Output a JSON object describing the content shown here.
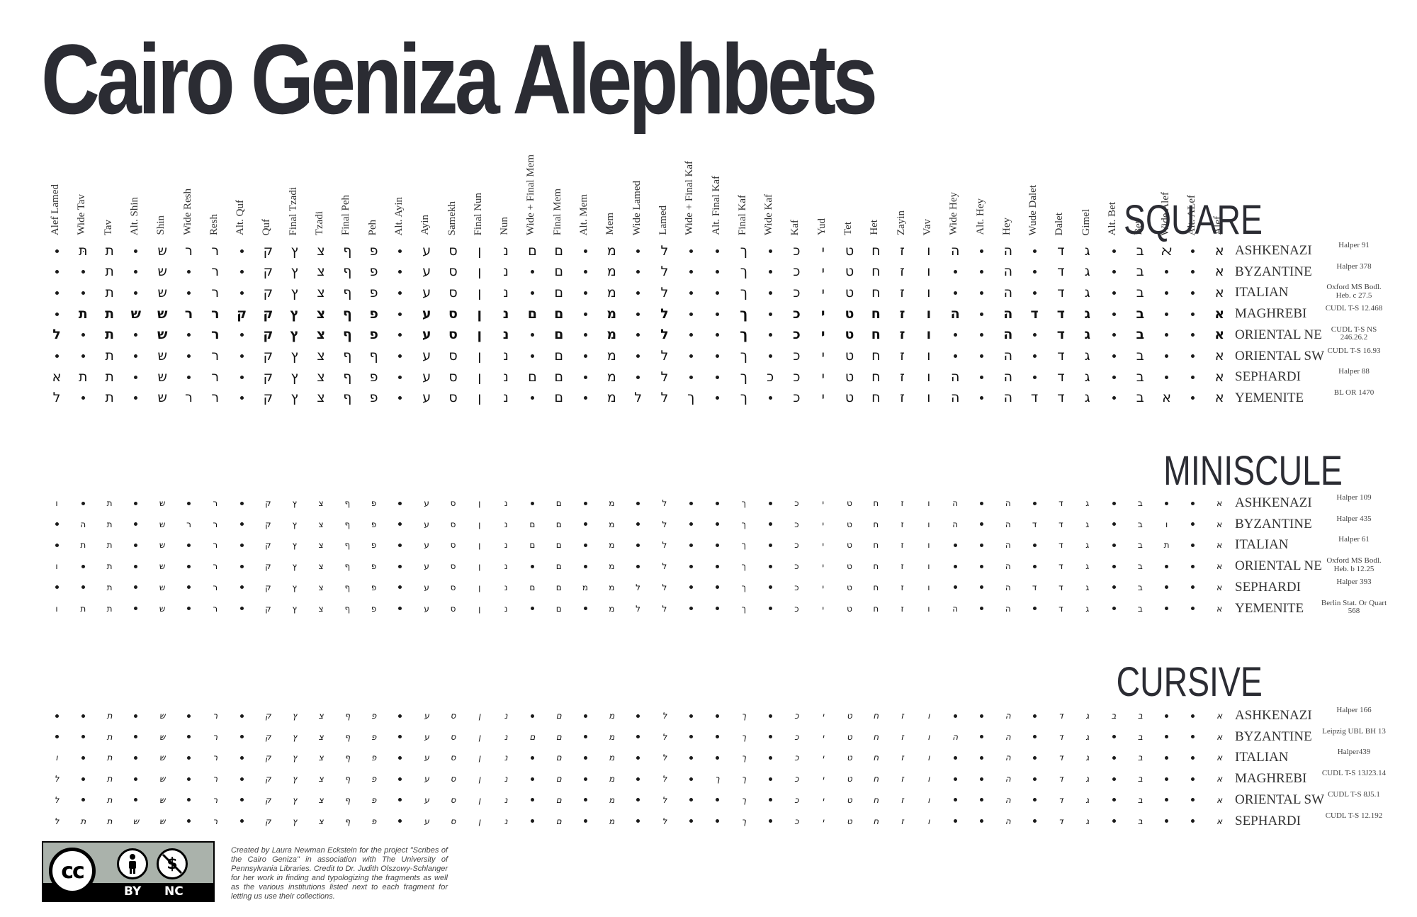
{
  "title": "Cairo Geniza Alephbets",
  "columns": [
    "Alef Lamed",
    "Wide Tav",
    "Tav",
    "Alt. Shin",
    "Shin",
    "Wide Resh",
    "Resh",
    "Alt. Quf",
    "Quf",
    "Final Tzadi",
    "Tzadi",
    "Final Peh",
    "Peh",
    "Alt. Ayin",
    "Ayin",
    "Samekh",
    "Final Nun",
    "Nun",
    "Wide + Final Mem",
    "Final Mem",
    "Alt. Mem",
    "Mem",
    "Wide Lamed",
    "Lamed",
    "Wide + Final Kaf",
    "Alt. Final Kaf",
    "Final Kaf",
    "Wide Kaf",
    "Kaf",
    "Yud",
    "Tet",
    "Het",
    "Zayin",
    "Vav",
    "Wide Hey",
    "Alt. Hey",
    "Hey",
    "Wude Dalet",
    "Dalet",
    "Gimel",
    "Alt. Bet",
    "Bet",
    "Wide Alef",
    "Alt. ALef",
    "Alef"
  ],
  "sections": [
    {
      "title": "SQUARE",
      "rows": [
        {
          "tradition": "ASHKENAZI",
          "source": "Halper 91",
          "glyphs": [
            "•",
            "תּ",
            "ת",
            "•",
            "ש",
            "ר",
            "ר",
            "•",
            "ק",
            "ץ",
            "צ",
            "ף",
            "פ",
            "•",
            "ע",
            "ס",
            "ן",
            "נ",
            "ם",
            "ם",
            "•",
            "מ",
            "•",
            "ל",
            "•",
            "•",
            "ך",
            "•",
            "כ",
            "י",
            "ט",
            "ח",
            "ז",
            "ו",
            "ה",
            "•",
            "ה",
            "•",
            "ד",
            "ג",
            "•",
            "ב",
            "ﬡ",
            "•",
            "א"
          ]
        },
        {
          "tradition": "BYZANTINE",
          "source": "Halper 378",
          "glyphs": [
            "•",
            "•",
            "ת",
            "•",
            "ש",
            "•",
            "ר",
            "•",
            "ק",
            "ץ",
            "צ",
            "ף",
            "פ",
            "•",
            "ע",
            "ס",
            "ן",
            "נ",
            "•",
            "ם",
            "•",
            "מ",
            "•",
            "ל",
            "•",
            "•",
            "ך",
            "•",
            "כ",
            "י",
            "ט",
            "ח",
            "ז",
            "ו",
            "•",
            "•",
            "ה",
            "•",
            "ד",
            "ג",
            "•",
            "ב",
            "•",
            "•",
            "א"
          ]
        },
        {
          "tradition": "ITALIAN",
          "source": "Oxford MS Bodl. Heb. c 27.5",
          "glyphs": [
            "•",
            "•",
            "ת",
            "•",
            "ש",
            "•",
            "ר",
            "•",
            "ק",
            "ץ",
            "צ",
            "ף",
            "פ",
            "•",
            "ע",
            "ס",
            "ן",
            "נ",
            "•",
            "ם",
            "•",
            "מ",
            "•",
            "ל",
            "•",
            "•",
            "ך",
            "•",
            "כ",
            "י",
            "ט",
            "ח",
            "ז",
            "ו",
            "•",
            "•",
            "ה",
            "•",
            "ד",
            "ג",
            "•",
            "ב",
            "•",
            "•",
            "א"
          ]
        },
        {
          "tradition": "MAGHREBI",
          "source": "CUDL T-S 12.468",
          "glyphs": [
            "•",
            "ת",
            "ת",
            "ש",
            "ש",
            "ר",
            "ר",
            "ק",
            "ק",
            "ץ",
            "צ",
            "ף",
            "פ",
            "•",
            "ע",
            "ס",
            "ן",
            "נ",
            "ם",
            "ם",
            "•",
            "מ",
            "•",
            "ל",
            "•",
            "•",
            "ך",
            "•",
            "כ",
            "י",
            "ט",
            "ח",
            "ז",
            "ו",
            "ה",
            "•",
            "ה",
            "ד",
            "ד",
            "ג",
            "•",
            "ב",
            "•",
            "•",
            "א"
          ]
        },
        {
          "tradition": "ORIENTAL NE",
          "source": "CUDL T-S NS 246.26.2",
          "glyphs": [
            "ל",
            "•",
            "ת",
            "•",
            "ש",
            "•",
            "ר",
            "•",
            "ק",
            "ץ",
            "צ",
            "ף",
            "פ",
            "•",
            "ע",
            "ס",
            "ן",
            "נ",
            "•",
            "ם",
            "•",
            "מ",
            "•",
            "ל",
            "•",
            "•",
            "ך",
            "•",
            "כ",
            "י",
            "ט",
            "ח",
            "ז",
            "ו",
            "•",
            "•",
            "ה",
            "•",
            "ד",
            "ג",
            "•",
            "ב",
            "•",
            "•",
            "א"
          ]
        },
        {
          "tradition": "ORIENTAL SW",
          "source": "CUDL T-S 16.93",
          "glyphs": [
            "•",
            "•",
            "ת",
            "•",
            "ש",
            "•",
            "ר",
            "•",
            "ק",
            "ץ",
            "צ",
            "ף",
            "ף",
            "•",
            "ע",
            "ס",
            "ן",
            "נ",
            "•",
            "ם",
            "•",
            "מ",
            "•",
            "ל",
            "•",
            "•",
            "ך",
            "•",
            "כ",
            "י",
            "ט",
            "ח",
            "ז",
            "ו",
            "•",
            "•",
            "ה",
            "•",
            "ד",
            "ג",
            "•",
            "ב",
            "•",
            "•",
            "א"
          ]
        },
        {
          "tradition": "SEPHARDI",
          "source": "Halper 88",
          "glyphs": [
            "א",
            "ת",
            "ת",
            "•",
            "ש",
            "•",
            "ר",
            "•",
            "ק",
            "ץ",
            "צ",
            "ף",
            "פ",
            "•",
            "ע",
            "ס",
            "ן",
            "נ",
            "ם",
            "ם",
            "•",
            "מ",
            "•",
            "ל",
            "•",
            "•",
            "ך",
            "כ",
            "כ",
            "י",
            "ט",
            "ח",
            "ז",
            "ו",
            "ה",
            "•",
            "ה",
            "•",
            "ד",
            "ג",
            "•",
            "ב",
            "•",
            "•",
            "א"
          ]
        },
        {
          "tradition": "YEMENITE",
          "source": "BL OR 1470",
          "glyphs": [
            "ל",
            "•",
            "ת",
            "•",
            "ש",
            "ר",
            "ר",
            "•",
            "ק",
            "ץ",
            "צ",
            "ף",
            "פ",
            "•",
            "ע",
            "ס",
            "ן",
            "נ",
            "•",
            "ם",
            "•",
            "מ",
            "ל",
            "ל",
            "ך",
            "•",
            "ך",
            "•",
            "כ",
            "י",
            "ט",
            "ח",
            "ז",
            "ו",
            "ה",
            "•",
            "ה",
            "ד",
            "ד",
            "ג",
            "•",
            "ב",
            "א",
            "•",
            "א"
          ]
        }
      ]
    },
    {
      "title": "MINISCULE",
      "rows": [
        {
          "tradition": "ASHKENAZI",
          "source": "Halper 109",
          "glyphs": [
            "ו",
            "•",
            "ת",
            "•",
            "ש",
            "•",
            "ר",
            "•",
            "ק",
            "ץ",
            "צ",
            "ף",
            "פ",
            "•",
            "ע",
            "ס",
            "ן",
            "נ",
            "•",
            "ם",
            "•",
            "מ",
            "•",
            "ל",
            "•",
            "•",
            "ך",
            "•",
            "כ",
            "י",
            "ט",
            "ח",
            "ז",
            "ו",
            "ה",
            "•",
            "ה",
            "•",
            "ד",
            "ג",
            "•",
            "ב",
            "•",
            "•",
            "א"
          ]
        },
        {
          "tradition": "BYZANTINE",
          "source": "Halper 435",
          "glyphs": [
            "•",
            "ה",
            "ת",
            "•",
            "ש",
            "ר",
            "ר",
            "•",
            "ק",
            "ץ",
            "צ",
            "ף",
            "פ",
            "•",
            "ע",
            "ס",
            "ן",
            "נ",
            "ם",
            "ם",
            "•",
            "מ",
            "•",
            "ל",
            "•",
            "•",
            "ך",
            "•",
            "כ",
            "י",
            "ט",
            "ח",
            "ז",
            "ו",
            "ה",
            "•",
            "ה",
            "ד",
            "ד",
            "ג",
            "•",
            "ב",
            "ו",
            "•",
            "א"
          ]
        },
        {
          "tradition": "ITALIAN",
          "source": "Halper 61",
          "glyphs": [
            "•",
            "ת",
            "ת",
            "•",
            "ש",
            "•",
            "ר",
            "•",
            "ק",
            "ץ",
            "צ",
            "ף",
            "פ",
            "•",
            "ע",
            "ס",
            "ן",
            "נ",
            "ם",
            "ם",
            "•",
            "מ",
            "•",
            "ל",
            "•",
            "•",
            "ך",
            "•",
            "כ",
            "י",
            "ט",
            "ח",
            "ז",
            "ו",
            "•",
            "•",
            "ה",
            "•",
            "ד",
            "ג",
            "•",
            "ב",
            "ת",
            "•",
            "א"
          ]
        },
        {
          "tradition": "ORIENTAL NE",
          "source": "Oxford MS Bodl. Heb. b 12.25",
          "glyphs": [
            "ו",
            "•",
            "ת",
            "•",
            "ש",
            "•",
            "ר",
            "•",
            "ק",
            "ץ",
            "צ",
            "ף",
            "פ",
            "•",
            "ע",
            "ס",
            "ן",
            "נ",
            "•",
            "ם",
            "•",
            "מ",
            "•",
            "ל",
            "•",
            "•",
            "ך",
            "•",
            "כ",
            "י",
            "ט",
            "ח",
            "ז",
            "ו",
            "•",
            "•",
            "ה",
            "•",
            "ד",
            "ג",
            "•",
            "ב",
            "•",
            "•",
            "א"
          ]
        },
        {
          "tradition": "SEPHARDI",
          "source": "Halper 393",
          "glyphs": [
            "•",
            "•",
            "ת",
            "•",
            "ש",
            "•",
            "ר",
            "•",
            "ק",
            "ץ",
            "צ",
            "ף",
            "פ",
            "•",
            "ע",
            "ס",
            "ן",
            "נ",
            "ם",
            "ם",
            "מ",
            "מ",
            "ל",
            "ל",
            "•",
            "•",
            "ך",
            "•",
            "כ",
            "י",
            "ט",
            "ח",
            "ז",
            "ו",
            "•",
            "•",
            "ה",
            "ד",
            "ד",
            "ג",
            "•",
            "ב",
            "•",
            "•",
            "א"
          ]
        },
        {
          "tradition": "YEMENITE",
          "source": "Berlin Stat. Or Quart 568",
          "glyphs": [
            "ו",
            "ת",
            "ת",
            "•",
            "ש",
            "•",
            "ר",
            "•",
            "ק",
            "ץ",
            "צ",
            "ף",
            "פ",
            "•",
            "ע",
            "ס",
            "ן",
            "נ",
            "•",
            "ם",
            "•",
            "מ",
            "ל",
            "ל",
            "•",
            "•",
            "ך",
            "•",
            "כ",
            "י",
            "ט",
            "ח",
            "ז",
            "ו",
            "ה",
            "•",
            "ה",
            "•",
            "ד",
            "ג",
            "•",
            "ב",
            "•",
            "•",
            "א"
          ]
        }
      ]
    },
    {
      "title": "CURSIVE",
      "rows": [
        {
          "tradition": "ASHKENAZI",
          "source": "Halper 166",
          "glyphs": [
            "•",
            "•",
            "ת",
            "•",
            "ש",
            "•",
            "ר",
            "•",
            "ק",
            "ץ",
            "צ",
            "ף",
            "פ",
            "•",
            "ע",
            "ס",
            "ן",
            "נ",
            "•",
            "ם",
            "•",
            "מ",
            "•",
            "ל",
            "•",
            "•",
            "ך",
            "•",
            "כ",
            "י",
            "ט",
            "ח",
            "ז",
            "ו",
            "•",
            "•",
            "ה",
            "•",
            "ד",
            "ג",
            "ב",
            "ב",
            "•",
            "•",
            "א"
          ]
        },
        {
          "tradition": "BYZANTINE",
          "source": "Leipzig UBL BH 13",
          "glyphs": [
            "•",
            "•",
            "ת",
            "•",
            "ש",
            "•",
            "ר",
            "•",
            "ק",
            "ץ",
            "צ",
            "ף",
            "פ",
            "•",
            "ע",
            "ס",
            "ן",
            "נ",
            "ם",
            "ם",
            "•",
            "מ",
            "•",
            "ל",
            "•",
            "•",
            "ך",
            "•",
            "כ",
            "י",
            "ט",
            "ח",
            "ז",
            "ו",
            "ה",
            "•",
            "ה",
            "•",
            "ד",
            "ג",
            "•",
            "ב",
            "•",
            "•",
            "א"
          ]
        },
        {
          "tradition": "ITALIAN",
          "source": "Halper439",
          "glyphs": [
            "ו",
            "•",
            "ת",
            "•",
            "ש",
            "•",
            "ר",
            "•",
            "ק",
            "ץ",
            "צ",
            "ף",
            "פ",
            "•",
            "ע",
            "ס",
            "ן",
            "נ",
            "•",
            "ם",
            "•",
            "מ",
            "•",
            "ל",
            "•",
            "•",
            "ך",
            "•",
            "כ",
            "י",
            "ט",
            "ח",
            "ז",
            "ו",
            "•",
            "•",
            "ה",
            "•",
            "ד",
            "ג",
            "•",
            "ב",
            "•",
            "•",
            "א"
          ]
        },
        {
          "tradition": "MAGHREBI",
          "source": "CUDL T-S 13J23.14",
          "glyphs": [
            "ל",
            "•",
            "ת",
            "•",
            "ש",
            "•",
            "ר",
            "•",
            "ק",
            "ץ",
            "צ",
            "ף",
            "פ",
            "•",
            "ע",
            "ס",
            "ן",
            "נ",
            "•",
            "ם",
            "•",
            "מ",
            "•",
            "ל",
            "•",
            "ך",
            "ך",
            "•",
            "כ",
            "י",
            "ט",
            "ח",
            "ז",
            "ו",
            "•",
            "•",
            "ה",
            "•",
            "ד",
            "ג",
            "•",
            "ב",
            "•",
            "•",
            "א"
          ]
        },
        {
          "tradition": "ORIENTAL SW",
          "source": "CUDL T-S 8J5.1",
          "glyphs": [
            "ל",
            "•",
            "ת",
            "•",
            "ש",
            "•",
            "ר",
            "•",
            "ק",
            "ץ",
            "צ",
            "ף",
            "פ",
            "•",
            "ע",
            "ס",
            "ן",
            "נ",
            "•",
            "ם",
            "•",
            "מ",
            "•",
            "ל",
            "•",
            "•",
            "ך",
            "•",
            "כ",
            "י",
            "ט",
            "ח",
            "ז",
            "ו",
            "•",
            "•",
            "ה",
            "•",
            "ד",
            "ג",
            "•",
            "ב",
            "•",
            "•",
            "א"
          ]
        },
        {
          "tradition": "SEPHARDI",
          "source": "CUDL T-S 12.192",
          "glyphs": [
            "ל",
            "ת",
            "ת",
            "ש",
            "ש",
            "•",
            "ר",
            "•",
            "ק",
            "ץ",
            "צ",
            "ף",
            "פ",
            "•",
            "ע",
            "ס",
            "ן",
            "נ",
            "•",
            "ם",
            "•",
            "מ",
            "•",
            "ל",
            "•",
            "•",
            "ך",
            "•",
            "כ",
            "י",
            "ט",
            "ח",
            "ז",
            "ו",
            "•",
            "•",
            "ה",
            "•",
            "ד",
            "ג",
            "•",
            "ב",
            "•",
            "•",
            "א"
          ]
        }
      ]
    }
  ],
  "license": {
    "by_label": "BY",
    "nc_label": "NC",
    "icon": "creative-commons-by-nc"
  },
  "credit": "Created by Laura Newman Eckstein for the project \"Scribes of the Cairo Geniza\" in association with The University of Pennsylvania Libraries. Credit to Dr. Judith Olszowy-Schlanger for her work in finding and typologizing the fragments as well as the various institutions listed next to each fragment for letting us use their collections."
}
